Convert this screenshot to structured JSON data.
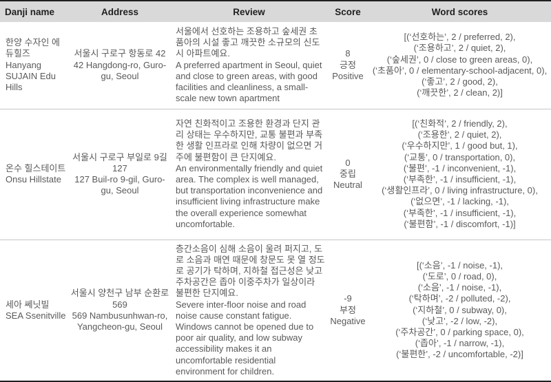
{
  "table": {
    "headers": [
      "Danji name",
      "Address",
      "Review",
      "Score",
      "Word scores"
    ],
    "rows": [
      {
        "danji": {
          "korean": "한양 수자인 에듀힐즈",
          "english": "Hanyang SUJAIN Edu Hills"
        },
        "address": {
          "korean": "서울시 구로구 항동로 42",
          "english": "42 Hangdong-ro, Guro-gu, Seoul"
        },
        "review": {
          "korean": "서울에서 선호하는 조용하고 숲세권 초품아의 시설 좋고 깨끗한 소규모의 신도시 아파트예요.",
          "english": "A preferred apartment in Seoul, quiet and close to green areas, with good facilities and cleanliness, a small-scale new town apartment"
        },
        "score": {
          "value": "8",
          "korean": "긍정",
          "english": "Positive"
        },
        "word_scores": [
          "[(‘선호하는’, 2 / preferred, 2),",
          "(‘조용하고’, 2 / quiet, 2),",
          "(‘숲세권’, 0 / close to green areas, 0),",
          "(‘초품아’, 0 / elementary-school-adjacent, 0),",
          "(‘좋고’, 2 / good, 2),",
          "(‘깨끗한’, 2 / clean, 2)]"
        ]
      },
      {
        "danji": {
          "korean": "온수 힐스테이트",
          "english": "Onsu Hillstate"
        },
        "address": {
          "korean": "서울시 구로구 부일로 9길 127",
          "english": "127 Buil-ro 9-gil, Guro-gu, Seoul"
        },
        "review": {
          "korean": "자연 친화적이고 조용한 환경과 단지 관리 상태는 우수하지만, 교통 불편과 부족한 생활 인프라로 인해 차량이 없으면 거주에 불편함이 큰 단지예요.",
          "english": "An environmentally friendly and quiet area. The complex is well managed, but transportation inconvenience and insufficient living infrastructure make the overall experience somewhat uncomfortable."
        },
        "score": {
          "value": "0",
          "korean": "중립",
          "english": "Neutral"
        },
        "word_scores": [
          "[(‘친화적’, 2 / friendly, 2),",
          "(‘조용한’, 2 / quiet, 2),",
          "(‘우수하지만’, 1 / good but, 1),",
          "(‘교통’, 0 / transportation, 0),",
          "(‘불편’, -1 / inconvenient, -1),",
          "(‘부족한’, -1 / insufficient, -1),",
          "(‘생활인프라’, 0 / living infrastructure, 0),",
          "(‘없으면’, -1 / lacking, -1),",
          "(‘부족한’, -1 / insufficient, -1),",
          "(‘불편함’, -1 / discomfort, -1)]"
        ]
      },
      {
        "danji": {
          "korean": "세아 쎄닛빌",
          "english": "SEA Ssenitville"
        },
        "address": {
          "korean": "서울시 양천구 남부 순환로 569",
          "english": "569 Nambusunhwan-ro, Yangcheon-gu, Seoul"
        },
        "review": {
          "korean": "층간소음이 심해 소음이 울려 퍼지고, 도로 소음과 매연 때문에 창문도 못 열 정도로 공기가 탁하며, 지하철 접근성은 낮고 주차공간은 좁아 이중주차가 일상이라 불편한 단지예요.",
          "english": "Severe inter-floor noise and road noise cause constant fatigue. Windows cannot be opened due to poor air quality, and low subway accessibility makes it an uncomfortable residential environment for children."
        },
        "score": {
          "value": "-9",
          "korean": "부정",
          "english": "Negative"
        },
        "word_scores": [
          "[(‘소음’, -1 / noise, -1),",
          "(‘도로’, 0 / road, 0),",
          "(‘소음’, -1 / noise, -1),",
          "(‘탁하며’, -2 / polluted, -2),",
          "(‘지하철’, 0 / subway, 0),",
          "(‘낮고’, -2 / low, -2),",
          "(‘주차공간’, 0 / parking space, 0),",
          "(‘좁아’, -1 / narrow, -1),",
          "(‘불편한’, -2 / uncomfortable, -2)]"
        ]
      }
    ],
    "colors": {
      "header_bg": "#d9d9d9",
      "header_text": "#1f1f1f",
      "body_text": "#595959",
      "row_separator": "#c6c6c6",
      "frame_border": "#1f1f1f"
    }
  }
}
